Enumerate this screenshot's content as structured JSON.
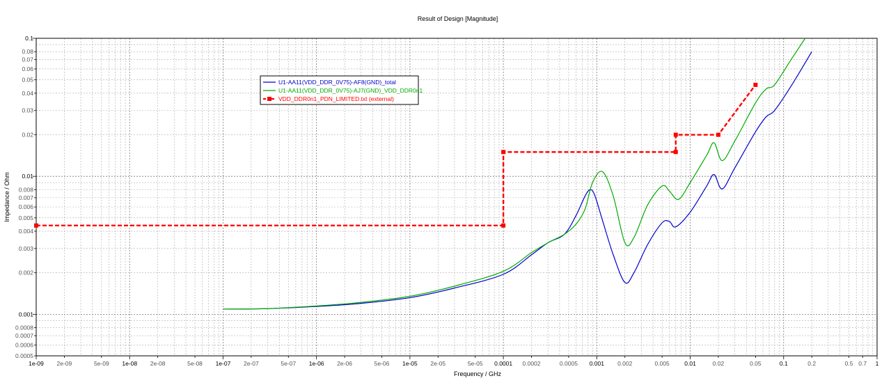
{
  "chart_data": {
    "type": "line",
    "title": "Result of Design [Magnitude]",
    "xlabel": "Frequency / GHz",
    "ylabel": "Impedance / Ohm",
    "x_scale": "log",
    "y_scale": "log",
    "xlim": [
      1e-09,
      1
    ],
    "ylim": [
      0.0005,
      0.1
    ],
    "grid": true,
    "legend_position": "top-left",
    "x_major_ticks": [
      {
        "v": 1e-09,
        "label": "1e-09"
      },
      {
        "v": 1e-08,
        "label": "1e-08"
      },
      {
        "v": 1e-07,
        "label": "1e-07"
      },
      {
        "v": 1e-06,
        "label": "1e-06"
      },
      {
        "v": 1e-05,
        "label": "1e-05"
      },
      {
        "v": 0.0001,
        "label": "0.0001"
      },
      {
        "v": 0.001,
        "label": "0.001"
      },
      {
        "v": 0.01,
        "label": "0.01"
      },
      {
        "v": 0.1,
        "label": "0.1"
      },
      {
        "v": 1,
        "label": "1"
      }
    ],
    "x_minor_ticks": [
      {
        "v": 2e-09,
        "label": "2e-09"
      },
      {
        "v": 5e-09,
        "label": "5e-09"
      },
      {
        "v": 2e-08,
        "label": "2e-08"
      },
      {
        "v": 5e-08,
        "label": "5e-08"
      },
      {
        "v": 2e-07,
        "label": "2e-07"
      },
      {
        "v": 5e-07,
        "label": "5e-07"
      },
      {
        "v": 2e-06,
        "label": "2e-06"
      },
      {
        "v": 5e-06,
        "label": "5e-06"
      },
      {
        "v": 2e-05,
        "label": "2e-05"
      },
      {
        "v": 5e-05,
        "label": "5e-05"
      },
      {
        "v": 0.0002,
        "label": "0.0002"
      },
      {
        "v": 0.0005,
        "label": "0.0005"
      },
      {
        "v": 0.002,
        "label": "0.002"
      },
      {
        "v": 0.005,
        "label": "0.005"
      },
      {
        "v": 0.02,
        "label": "0.02"
      },
      {
        "v": 0.05,
        "label": "0.05"
      },
      {
        "v": 0.2,
        "label": "0.2"
      },
      {
        "v": 0.5,
        "label": "0.5"
      },
      {
        "v": 0.7,
        "label": "0.7"
      }
    ],
    "y_major_ticks": [
      {
        "v": 0.1,
        "label": "0.1"
      },
      {
        "v": 0.01,
        "label": "0.01"
      },
      {
        "v": 0.001,
        "label": "0.001"
      }
    ],
    "y_minor_ticks": [
      {
        "v": 0.08,
        "label": "0.08"
      },
      {
        "v": 0.07,
        "label": "0.07"
      },
      {
        "v": 0.06,
        "label": "0.06"
      },
      {
        "v": 0.05,
        "label": "0.05"
      },
      {
        "v": 0.04,
        "label": "0.04"
      },
      {
        "v": 0.03,
        "label": "0.03"
      },
      {
        "v": 0.02,
        "label": "0.02"
      },
      {
        "v": 0.008,
        "label": "0.008"
      },
      {
        "v": 0.007,
        "label": "0.007"
      },
      {
        "v": 0.006,
        "label": "0.006"
      },
      {
        "v": 0.005,
        "label": "0.005"
      },
      {
        "v": 0.004,
        "label": "0.004"
      },
      {
        "v": 0.003,
        "label": "0.003"
      },
      {
        "v": 0.002,
        "label": "0.002"
      },
      {
        "v": 0.0008,
        "label": "0.0008"
      },
      {
        "v": 0.0007,
        "label": "0.0007"
      },
      {
        "v": 0.0006,
        "label": "0.0006"
      },
      {
        "v": 0.0005,
        "label": "0.0005"
      }
    ],
    "series": [
      {
        "name": "U1-AA11(VDD_DDR_0V75)-AF8(GND)_total",
        "color": "#0000cc",
        "style": "solid",
        "x": [
          1e-07,
          3e-07,
          1e-06,
          3e-06,
          1e-05,
          3e-05,
          0.0001,
          0.0002,
          0.0003,
          0.00045,
          0.0006,
          0.00075,
          0.00085,
          0.00095,
          0.00115,
          0.0015,
          0.002,
          0.0025,
          0.0035,
          0.005,
          0.006,
          0.007,
          0.01,
          0.015,
          0.018,
          0.022,
          0.03,
          0.05,
          0.065,
          0.08,
          0.12,
          0.2
        ],
        "y": [
          0.00109,
          0.0011,
          0.00114,
          0.0012,
          0.00132,
          0.00155,
          0.00195,
          0.0027,
          0.0033,
          0.0038,
          0.0052,
          0.0072,
          0.008,
          0.0073,
          0.0048,
          0.0027,
          0.0017,
          0.002,
          0.0032,
          0.0046,
          0.0047,
          0.0043,
          0.0055,
          0.0085,
          0.0103,
          0.0081,
          0.0115,
          0.021,
          0.027,
          0.03,
          0.045,
          0.08
        ]
      },
      {
        "name": "U1-AA11(VDD_DDR_0V75)-AJ7(GND)_VDD_DDR0n1",
        "color": "#00aa00",
        "style": "solid",
        "x": [
          1e-07,
          3e-07,
          1e-06,
          3e-06,
          1e-05,
          3e-05,
          0.0001,
          0.0002,
          0.0003,
          0.00045,
          0.0006,
          0.00075,
          0.0009,
          0.00115,
          0.0015,
          0.002,
          0.0025,
          0.0035,
          0.005,
          0.006,
          0.0075,
          0.01,
          0.015,
          0.018,
          0.022,
          0.03,
          0.05,
          0.065,
          0.08,
          0.12,
          0.17
        ],
        "y": [
          0.00109,
          0.0011,
          0.00115,
          0.00122,
          0.00135,
          0.0016,
          0.00205,
          0.0028,
          0.0033,
          0.0038,
          0.0045,
          0.0058,
          0.009,
          0.0108,
          0.0072,
          0.0033,
          0.0036,
          0.0062,
          0.0085,
          0.0078,
          0.0068,
          0.009,
          0.0142,
          0.0175,
          0.013,
          0.018,
          0.034,
          0.043,
          0.046,
          0.07,
          0.1
        ]
      },
      {
        "name": "VDD_DDR0n1_PDN_LIMITED.txt (external)",
        "color": "#ff0000",
        "style": "dashed",
        "markers": true,
        "x": [
          1e-09,
          0.0001,
          0.0001,
          0.007,
          0.007,
          0.02,
          0.05
        ],
        "y": [
          0.0044,
          0.0044,
          0.015,
          0.015,
          0.02,
          0.02,
          0.046
        ]
      }
    ]
  }
}
